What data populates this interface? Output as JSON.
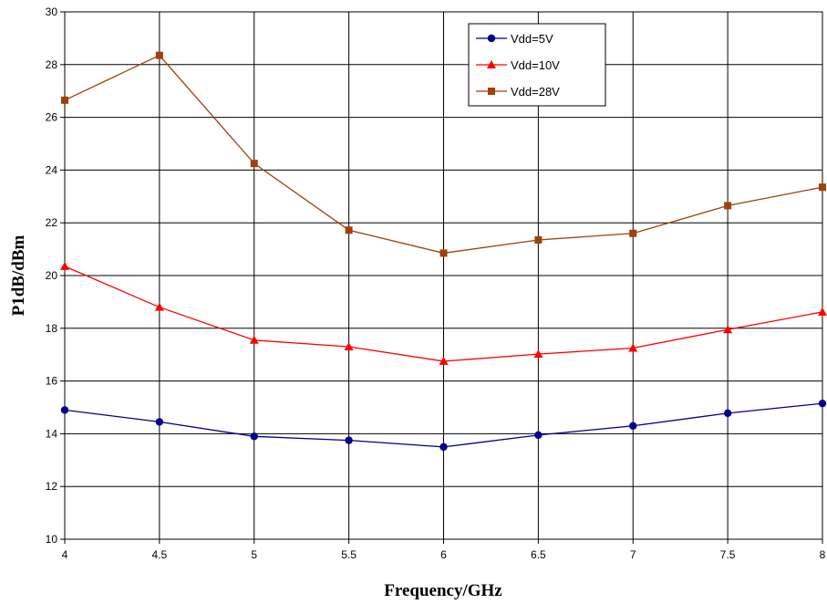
{
  "chart_data": {
    "type": "line",
    "title": "",
    "xlabel": "Frequency/GHz",
    "ylabel": "P1dB/dBm",
    "x": [
      4,
      4.5,
      5,
      5.5,
      6,
      6.5,
      7,
      7.5,
      8
    ],
    "x_tick_labels": [
      "4",
      "4.5",
      "5",
      "5.5",
      "6",
      "6.5",
      "7",
      "7.5",
      "8"
    ],
    "xlim": [
      4,
      8
    ],
    "ylim": [
      10,
      30
    ],
    "y_ticks": [
      10,
      12,
      14,
      16,
      18,
      20,
      22,
      24,
      26,
      28,
      30
    ],
    "grid": true,
    "legend_position": "top-center",
    "series": [
      {
        "name": "Vdd=5V",
        "color": "#00008B",
        "marker": "circle",
        "values": [
          14.9,
          14.45,
          13.9,
          13.75,
          13.5,
          13.95,
          14.3,
          14.78,
          15.15
        ]
      },
      {
        "name": "Vdd=10V",
        "color": "#FF0000",
        "marker": "triangle",
        "values": [
          20.35,
          18.8,
          17.55,
          17.3,
          16.75,
          17.02,
          17.25,
          17.95,
          18.62
        ]
      },
      {
        "name": "Vdd=28V",
        "color": "#A0400A",
        "marker": "square",
        "values": [
          26.65,
          28.35,
          24.25,
          21.72,
          20.85,
          21.35,
          21.6,
          22.65,
          23.35
        ]
      }
    ]
  }
}
